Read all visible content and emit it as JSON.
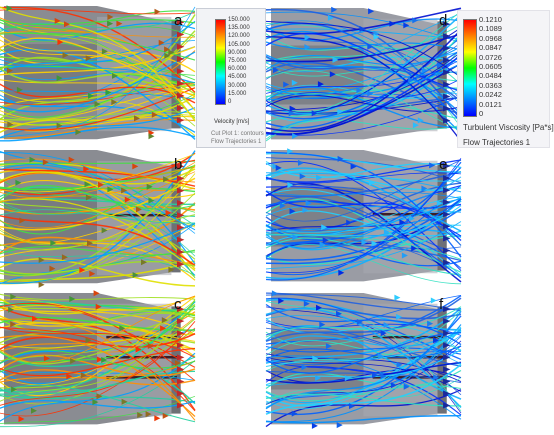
{
  "panels": [
    {
      "id": "a",
      "label": "a",
      "colormap": "velocity"
    },
    {
      "id": "b",
      "label": "b",
      "colormap": "velocity"
    },
    {
      "id": "c",
      "label": "c",
      "colormap": "velocity"
    },
    {
      "id": "d",
      "label": "d",
      "colormap": "viscosity"
    },
    {
      "id": "e",
      "label": "e",
      "colormap": "viscosity"
    },
    {
      "id": "f",
      "label": "f",
      "colormap": "viscosity"
    }
  ],
  "velocity_legend": {
    "title": "Velocity [m/s]",
    "ticks": [
      "150.000",
      "135.000",
      "120.000",
      "105.000",
      "90.000",
      "75.000",
      "60.000",
      "45.000",
      "30.000",
      "15.000",
      "0"
    ],
    "caption_1": "Cut Plot 1: contours",
    "caption_2": "Flow Trajectories 1"
  },
  "viscosity_legend": {
    "title": "Turbulent Viscosity [Pa*s]",
    "ticks": [
      "0.1210",
      "0.1089",
      "0.0968",
      "0.0847",
      "0.0726",
      "0.0605",
      "0.0484",
      "0.0363",
      "0.0242",
      "0.0121",
      "0"
    ],
    "caption": "Flow Trajectories 1"
  },
  "colors": {
    "rainbow_top": "#ff0000",
    "rainbow_bottom": "#0000ff",
    "duct_face": "#9a9aa0",
    "background": "#ffffff"
  }
}
